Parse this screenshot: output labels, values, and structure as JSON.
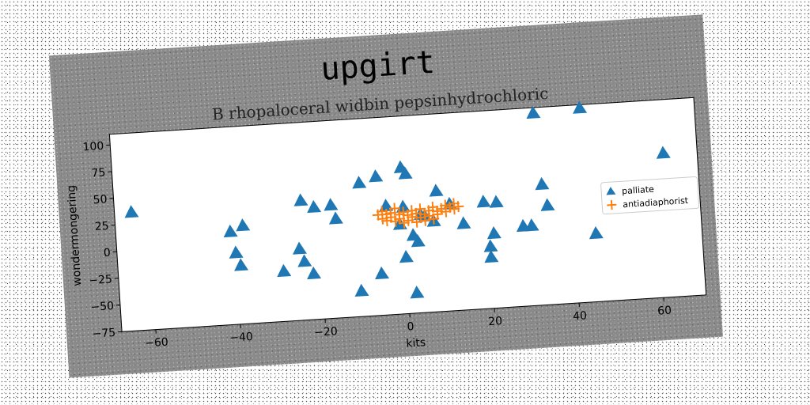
{
  "chart_data": {
    "type": "scatter",
    "title": "upgirt",
    "subtitle": "B rhopaloceral widbin pepsinhydrochloric",
    "xlabel": "kits",
    "ylabel": "wondermongering",
    "xlim": [
      -68,
      70
    ],
    "ylim": [
      -75,
      110
    ],
    "xticks": [
      -60,
      -40,
      -20,
      0,
      20,
      40,
      60
    ],
    "yticks": [
      -75,
      -50,
      -25,
      0,
      25,
      50,
      75,
      100
    ],
    "xtick_labels": [
      "−60",
      "−40",
      "−20",
      "0",
      "20",
      "40",
      "60"
    ],
    "ytick_labels": [
      "−75",
      "−50",
      "−25",
      "0",
      "25",
      "50",
      "75",
      "100"
    ],
    "grid": false,
    "legend_position": "right",
    "series": [
      {
        "name": "palliate",
        "marker": "triangle",
        "color": "#1f77b4",
        "points": [
          [
            -64,
            36
          ],
          [
            -41,
            12
          ],
          [
            -38,
            17
          ],
          [
            -40,
            -8
          ],
          [
            -39,
            -20
          ],
          [
            -29,
            -28
          ],
          [
            -24,
            37
          ],
          [
            -25,
            -8
          ],
          [
            -24,
            -20
          ],
          [
            -21,
            30
          ],
          [
            -22,
            -32
          ],
          [
            -17,
            31
          ],
          [
            -16,
            18
          ],
          [
            -11,
            -51
          ],
          [
            -10,
            50
          ],
          [
            -6,
            55
          ],
          [
            -6,
            -36
          ],
          [
            -4,
            27
          ],
          [
            -1,
            9
          ],
          [
            0,
            62
          ],
          [
            0,
            25
          ],
          [
            0,
            -22
          ],
          [
            1,
            56
          ],
          [
            2,
            -2
          ],
          [
            2,
            -56
          ],
          [
            3,
            -8
          ],
          [
            4,
            17
          ],
          [
            5,
            15
          ],
          [
            7,
            10
          ],
          [
            8,
            38
          ],
          [
            11,
            25
          ],
          [
            14,
            6
          ],
          [
            19,
            25
          ],
          [
            20,
            -17
          ],
          [
            20,
            -27
          ],
          [
            21,
            -5
          ],
          [
            22,
            24
          ],
          [
            28,
            0
          ],
          [
            30,
            0
          ],
          [
            32,
            105
          ],
          [
            33,
            38
          ],
          [
            34,
            18
          ],
          [
            43,
            107
          ],
          [
            45,
            -11
          ],
          [
            62,
            60
          ]
        ]
      },
      {
        "name": "antiadiaphorist",
        "marker": "plus",
        "color": "#ff7f0e",
        "points": [
          [
            -6,
            19
          ],
          [
            -5,
            15
          ],
          [
            -5,
            22
          ],
          [
            -4,
            19
          ],
          [
            -4,
            13
          ],
          [
            -3,
            20
          ],
          [
            -3,
            16
          ],
          [
            -2,
            24
          ],
          [
            -2,
            12
          ],
          [
            -1,
            18
          ],
          [
            -1,
            14
          ],
          [
            0,
            20
          ],
          [
            0,
            10
          ],
          [
            1,
            17
          ],
          [
            1,
            12
          ],
          [
            2,
            21
          ],
          [
            2,
            15
          ],
          [
            3,
            18
          ],
          [
            3,
            10
          ],
          [
            4,
            22
          ],
          [
            4,
            14
          ],
          [
            5,
            17
          ],
          [
            5,
            11
          ],
          [
            6,
            20
          ],
          [
            6,
            15
          ],
          [
            7,
            23
          ],
          [
            7,
            12
          ],
          [
            8,
            19
          ],
          [
            8,
            16
          ],
          [
            9,
            21
          ],
          [
            10,
            24
          ],
          [
            10,
            18
          ],
          [
            11,
            22
          ],
          [
            12,
            25
          ],
          [
            12,
            20
          ],
          [
            13,
            22
          ]
        ]
      }
    ]
  }
}
